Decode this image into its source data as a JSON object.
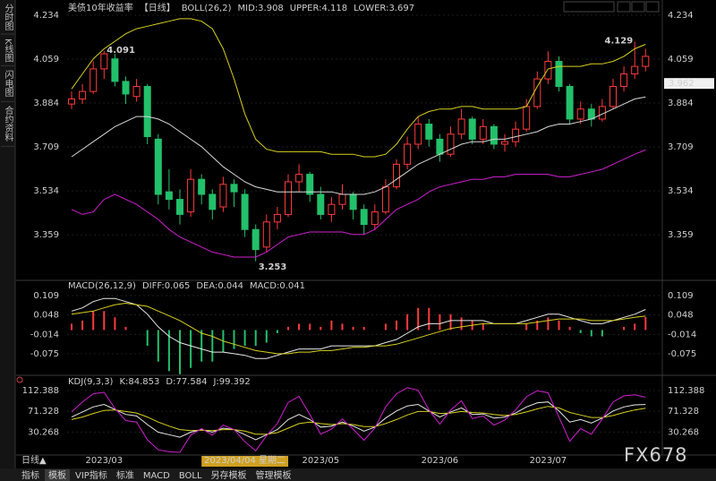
{
  "sidebar": [
    "分时图",
    "K线图",
    "闪电图",
    "合约资料"
  ],
  "tabs": [
    "指标",
    "模板",
    "VIP指标",
    "标准",
    "MACD",
    "BOLL",
    "另存模板",
    "管理模板"
  ],
  "period_button": "日线▲",
  "watermark": "FX678",
  "chart_data": [
    {
      "type": "candlestick",
      "title": "美债10年收益率",
      "period": "【日线】",
      "indicator": "BOLL(26,2)",
      "categories": [
        null,
        null,
        null,
        "2023/03",
        null,
        null,
        null,
        null,
        null,
        null,
        null,
        null,
        null,
        null,
        null,
        null,
        "2023/04/04 星期二",
        null,
        null,
        null,
        null,
        null,
        null,
        "2023/05",
        null,
        null,
        null,
        null,
        null,
        null,
        null,
        null,
        null,
        null,
        "2023/06",
        null,
        null,
        null,
        null,
        null,
        null,
        null,
        null,
        null,
        "2023/07",
        null,
        null,
        null,
        null,
        null,
        null,
        null,
        null,
        null
      ],
      "open": [
        3.88,
        3.9,
        3.93,
        4.02,
        4.06,
        3.97,
        3.91,
        3.95,
        3.74,
        3.53,
        3.5,
        3.45,
        3.58,
        3.52,
        3.47,
        3.56,
        3.52,
        3.38,
        3.31,
        3.41,
        3.44,
        3.57,
        3.6,
        3.52,
        3.44,
        3.48,
        3.52,
        3.46,
        3.4,
        3.45,
        3.55,
        3.64,
        3.72,
        3.8,
        3.74,
        3.68,
        3.76,
        3.82,
        3.74,
        3.79,
        3.72,
        3.73,
        3.78,
        3.87,
        3.98,
        4.05,
        3.95,
        3.82,
        3.86,
        3.82,
        3.87,
        3.95,
        4.0,
        4.03
      ],
      "high": [
        3.93,
        3.96,
        4.05,
        4.091,
        4.08,
        3.99,
        3.98,
        3.96,
        3.76,
        3.62,
        3.54,
        3.62,
        3.6,
        3.54,
        3.59,
        3.58,
        3.54,
        3.4,
        3.44,
        3.47,
        3.6,
        3.64,
        3.61,
        3.55,
        3.51,
        3.56,
        3.53,
        3.48,
        3.48,
        3.58,
        3.66,
        3.75,
        3.83,
        3.82,
        3.76,
        3.79,
        3.86,
        3.83,
        3.82,
        3.8,
        3.76,
        3.81,
        3.9,
        4.01,
        4.09,
        4.07,
        3.96,
        3.89,
        3.88,
        3.9,
        3.98,
        4.03,
        4.129,
        4.1
      ],
      "low": [
        3.86,
        3.88,
        3.92,
        3.98,
        3.95,
        3.88,
        3.89,
        3.72,
        3.48,
        3.46,
        3.4,
        3.43,
        3.48,
        3.42,
        3.45,
        3.47,
        3.35,
        3.253,
        3.29,
        3.38,
        3.43,
        3.53,
        3.49,
        3.42,
        3.41,
        3.46,
        3.42,
        3.36,
        3.38,
        3.44,
        3.54,
        3.62,
        3.7,
        3.71,
        3.65,
        3.67,
        3.74,
        3.72,
        3.72,
        3.7,
        3.69,
        3.71,
        3.77,
        3.86,
        3.96,
        3.93,
        3.8,
        3.8,
        3.79,
        3.81,
        3.86,
        3.93,
        3.98,
        4.01
      ],
      "close": [
        3.9,
        3.93,
        4.02,
        4.08,
        3.97,
        3.92,
        3.95,
        3.75,
        3.52,
        3.5,
        3.44,
        3.58,
        3.52,
        3.46,
        3.56,
        3.53,
        3.38,
        3.3,
        3.41,
        3.44,
        3.57,
        3.6,
        3.52,
        3.44,
        3.48,
        3.52,
        3.46,
        3.4,
        3.45,
        3.55,
        3.64,
        3.72,
        3.8,
        3.74,
        3.68,
        3.76,
        3.82,
        3.74,
        3.79,
        3.72,
        3.73,
        3.78,
        3.87,
        3.98,
        4.05,
        3.95,
        3.82,
        3.86,
        3.82,
        3.87,
        3.95,
        4.0,
        4.03,
        4.07
      ],
      "up_color": "#ff3b3b",
      "down_color": "#22c06a",
      "series": [
        {
          "name": "MID:3.908",
          "color": "#d8d8d8",
          "values": [
            3.67,
            3.7,
            3.73,
            3.76,
            3.79,
            3.81,
            3.83,
            3.83,
            3.82,
            3.8,
            3.77,
            3.74,
            3.71,
            3.67,
            3.63,
            3.6,
            3.57,
            3.55,
            3.54,
            3.53,
            3.53,
            3.53,
            3.53,
            3.53,
            3.53,
            3.52,
            3.52,
            3.52,
            3.53,
            3.55,
            3.58,
            3.61,
            3.64,
            3.66,
            3.68,
            3.7,
            3.72,
            3.73,
            3.73,
            3.74,
            3.74,
            3.75,
            3.76,
            3.77,
            3.79,
            3.8,
            3.8,
            3.81,
            3.82,
            3.84,
            3.86,
            3.88,
            3.9,
            3.908
          ]
        },
        {
          "name": "UPPER:4.118",
          "color": "#d8d020",
          "values": [
            3.94,
            4.0,
            4.06,
            4.1,
            4.13,
            4.16,
            4.18,
            4.19,
            4.2,
            4.21,
            4.22,
            4.22,
            4.21,
            4.18,
            4.1,
            3.98,
            3.84,
            3.74,
            3.7,
            3.69,
            3.69,
            3.69,
            3.69,
            3.69,
            3.68,
            3.68,
            3.68,
            3.67,
            3.67,
            3.68,
            3.72,
            3.78,
            3.83,
            3.85,
            3.86,
            3.86,
            3.87,
            3.87,
            3.86,
            3.86,
            3.86,
            3.86,
            3.87,
            3.95,
            4.02,
            4.03,
            4.03,
            4.03,
            4.04,
            4.04,
            4.05,
            4.07,
            4.1,
            4.118
          ]
        },
        {
          "name": "LOWER:3.697",
          "color": "#d020d0",
          "values": [
            3.46,
            3.44,
            3.45,
            3.5,
            3.52,
            3.5,
            3.48,
            3.45,
            3.42,
            3.38,
            3.35,
            3.33,
            3.31,
            3.29,
            3.28,
            3.27,
            3.27,
            3.27,
            3.29,
            3.32,
            3.35,
            3.36,
            3.37,
            3.37,
            3.37,
            3.37,
            3.36,
            3.36,
            3.38,
            3.42,
            3.46,
            3.48,
            3.5,
            3.53,
            3.55,
            3.56,
            3.57,
            3.58,
            3.58,
            3.59,
            3.59,
            3.6,
            3.6,
            3.6,
            3.6,
            3.59,
            3.59,
            3.6,
            3.61,
            3.62,
            3.64,
            3.66,
            3.68,
            3.697
          ]
        }
      ],
      "annotations": [
        4.091,
        4.129,
        3.253
      ],
      "last_price": 3.962,
      "ylim": [
        3.188,
        4.266
      ],
      "yticks": [
        4.234,
        4.059,
        3.884,
        3.709,
        3.534,
        3.359
      ],
      "grid": true
    },
    {
      "type": "macd",
      "indicator": "MACD(26,12,9)",
      "series": [
        {
          "name": "DIFF:0.065",
          "color": "#e8e8e8",
          "values": [
            0.06,
            0.07,
            0.09,
            0.1,
            0.1,
            0.09,
            0.08,
            0.05,
            0.01,
            -0.02,
            -0.04,
            -0.05,
            -0.06,
            -0.07,
            -0.07,
            -0.075,
            -0.08,
            -0.09,
            -0.09,
            -0.08,
            -0.07,
            -0.06,
            -0.06,
            -0.06,
            -0.05,
            -0.05,
            -0.05,
            -0.05,
            -0.05,
            -0.04,
            -0.03,
            -0.01,
            0.01,
            0.02,
            0.02,
            0.03,
            0.03,
            0.03,
            0.03,
            0.02,
            0.02,
            0.02,
            0.03,
            0.04,
            0.05,
            0.05,
            0.04,
            0.03,
            0.02,
            0.02,
            0.03,
            0.04,
            0.05,
            0.065
          ]
        },
        {
          "name": "DEA:0.044",
          "color": "#d8d020",
          "values": [
            0.05,
            0.055,
            0.06,
            0.07,
            0.08,
            0.085,
            0.08,
            0.075,
            0.06,
            0.045,
            0.03,
            0.01,
            -0.01,
            -0.02,
            -0.035,
            -0.045,
            -0.055,
            -0.065,
            -0.07,
            -0.075,
            -0.075,
            -0.07,
            -0.07,
            -0.065,
            -0.065,
            -0.06,
            -0.055,
            -0.055,
            -0.05,
            -0.05,
            -0.045,
            -0.035,
            -0.025,
            -0.015,
            -0.005,
            0.005,
            0.01,
            0.015,
            0.02,
            0.02,
            0.02,
            0.02,
            0.02,
            0.025,
            0.03,
            0.035,
            0.035,
            0.035,
            0.03,
            0.03,
            0.03,
            0.035,
            0.04,
            0.044
          ]
        }
      ],
      "histogram": {
        "name": "MACD:0.041",
        "color": "#d020d0",
        "up_color": "#ff3b3b",
        "down_color": "#22c06a",
        "values": [
          0.02,
          0.03,
          0.06,
          0.06,
          0.04,
          0.01,
          0.0,
          -0.05,
          -0.1,
          -0.13,
          -0.14,
          -0.12,
          -0.1,
          -0.1,
          -0.07,
          -0.06,
          -0.05,
          -0.05,
          -0.04,
          -0.01,
          0.01,
          0.02,
          0.02,
          0.01,
          0.03,
          0.02,
          0.01,
          0.01,
          0.0,
          0.02,
          0.03,
          0.05,
          0.07,
          0.07,
          0.05,
          0.05,
          0.04,
          0.03,
          0.02,
          0.0,
          0.0,
          0.0,
          0.02,
          0.03,
          0.04,
          0.03,
          0.01,
          -0.01,
          -0.02,
          -0.02,
          0.0,
          0.01,
          0.02,
          0.041
        ]
      },
      "ylim": [
        -0.132,
        0.143
      ],
      "yticks": [
        0.109,
        0.048,
        -0.014,
        -0.075
      ],
      "grid": true
    },
    {
      "type": "line",
      "indicator": "KDJ(9,3,3)",
      "series": [
        {
          "name": "K:84.853",
          "color": "#e8e8e8",
          "values": [
            60,
            70,
            80,
            85,
            75,
            65,
            62,
            45,
            30,
            25,
            20,
            30,
            35,
            30,
            38,
            35,
            25,
            15,
            25,
            35,
            55,
            65,
            55,
            40,
            42,
            50,
            42,
            32,
            40,
            58,
            72,
            82,
            85,
            72,
            60,
            70,
            78,
            65,
            66,
            58,
            60,
            68,
            80,
            88,
            90,
            72,
            50,
            55,
            48,
            58,
            72,
            80,
            84,
            84.853
          ]
        },
        {
          "name": "D:77.584",
          "color": "#d8d020",
          "values": [
            55,
            60,
            67,
            73,
            74,
            71,
            68,
            60,
            50,
            42,
            35,
            33,
            34,
            33,
            35,
            35,
            32,
            26,
            26,
            29,
            38,
            47,
            50,
            47,
            45,
            47,
            45,
            41,
            41,
            47,
            55,
            64,
            71,
            71,
            67,
            68,
            71,
            69,
            68,
            65,
            63,
            65,
            70,
            76,
            81,
            78,
            69,
            64,
            59,
            59,
            63,
            69,
            74,
            77.584
          ]
        },
        {
          "name": "J:99.392",
          "color": "#d020d0",
          "values": [
            70,
            90,
            106,
            109,
            77,
            53,
            50,
            15,
            -5,
            -9,
            -10,
            24,
            37,
            24,
            44,
            35,
            11,
            -7,
            23,
            47,
            89,
            101,
            65,
            26,
            36,
            56,
            36,
            14,
            38,
            80,
            106,
            118,
            113,
            74,
            46,
            74,
            92,
            57,
            62,
            44,
            54,
            74,
            100,
            112,
            108,
            60,
            12,
            37,
            26,
            56,
            90,
            102,
            104,
            99.392
          ]
        }
      ],
      "ylim": [
        -10,
        132
      ],
      "yticks": [
        112.388,
        71.328,
        30.268
      ],
      "grid": true
    }
  ]
}
